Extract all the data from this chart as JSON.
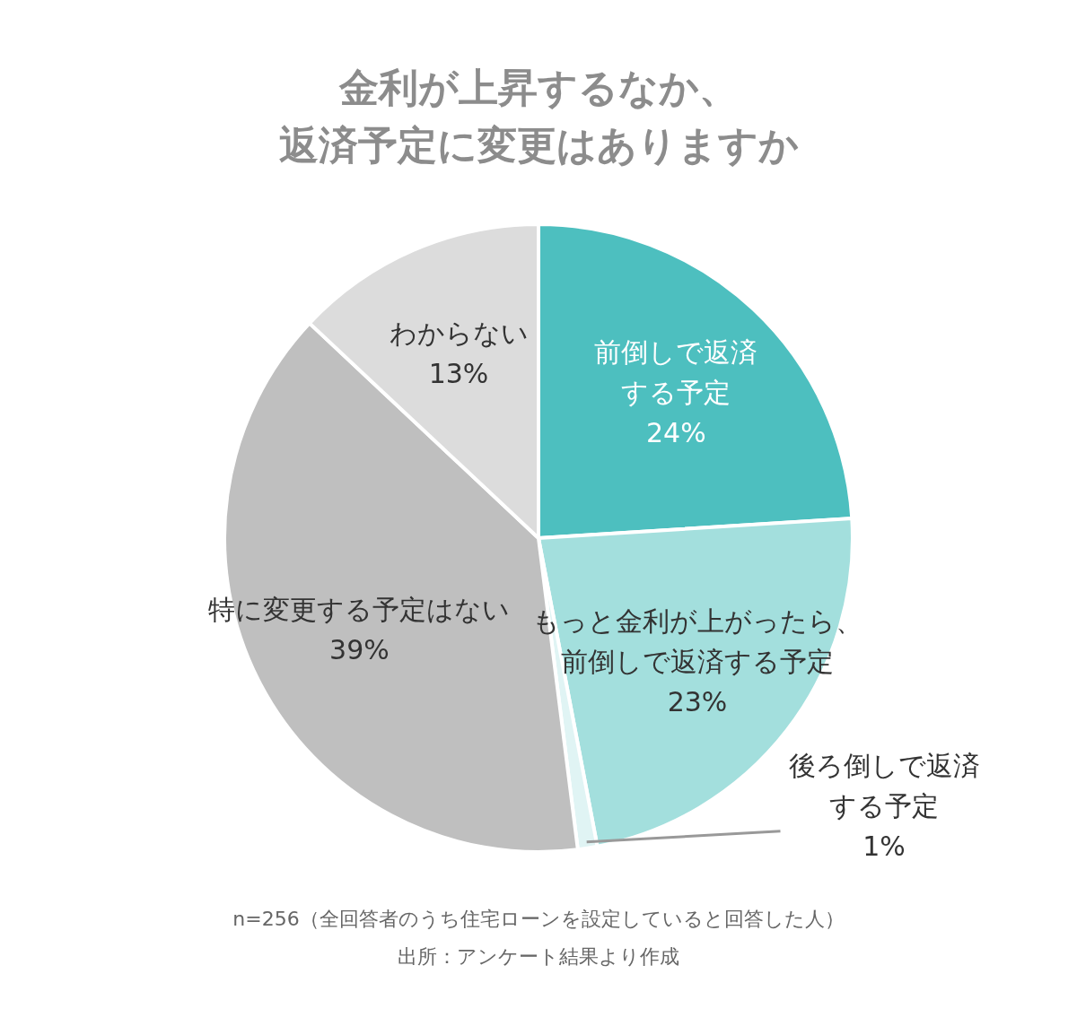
{
  "chart_data": {
    "type": "pie",
    "title": "金利が上昇するなか、返済予定に変更はありますか",
    "categories": [
      "前倒しで返済する予定",
      "もっと金利が上がったら、前倒しで返済する予定",
      "後ろ倒しで返済する予定",
      "特に変更する予定はない",
      "わからない"
    ],
    "values": [
      24,
      23,
      1,
      39,
      13
    ],
    "value_labels": [
      "24%",
      "23%",
      "1%",
      "39%",
      "13%"
    ],
    "colors": [
      "#4dbfbf",
      "#a3dfdd",
      "#e0f4f4",
      "#bfbfbf",
      "#dcdcdc"
    ],
    "annotations": [
      "n=256（全回答者のうち住宅ローンを設定していると回答した人）",
      "出所：アンケート結果より作成"
    ]
  }
}
